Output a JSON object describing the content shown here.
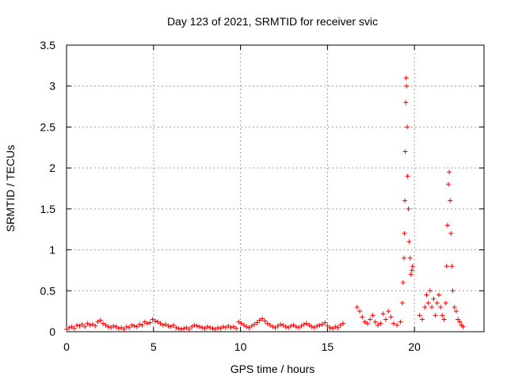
{
  "chart_data": {
    "type": "scatter",
    "title": "Day 123 of 2021, SRMTID for receiver svic",
    "xlabel": "GPS time / hours",
    "ylabel": "SRMTID / TECUs",
    "xlim": [
      0,
      24
    ],
    "ylim": [
      0,
      3.5
    ],
    "x_ticks": [
      0,
      5,
      10,
      15,
      20
    ],
    "x_tick_labels": [
      "0",
      "5",
      "10",
      "15",
      "20"
    ],
    "y_ticks": [
      0,
      0.5,
      1,
      1.5,
      2,
      2.5,
      3,
      3.5
    ],
    "y_tick_labels": [
      "0",
      "0.5",
      "1",
      "1.5",
      "2",
      "2.5",
      "3",
      "3.5"
    ],
    "grid": true,
    "marker": "+",
    "color": "#ff0000",
    "series": [
      {
        "name": "SRMTID",
        "x": [
          0.0,
          0.15,
          0.3,
          0.45,
          0.6,
          0.75,
          0.9,
          1.05,
          1.2,
          1.35,
          1.5,
          1.65,
          1.8,
          1.95,
          2.1,
          2.25,
          2.4,
          2.55,
          2.7,
          2.85,
          3.0,
          3.15,
          3.3,
          3.45,
          3.6,
          3.75,
          3.9,
          4.05,
          4.2,
          4.35,
          4.5,
          4.65,
          4.8,
          4.95,
          5.1,
          5.25,
          5.4,
          5.55,
          5.7,
          5.85,
          6.0,
          6.15,
          6.3,
          6.45,
          6.6,
          6.75,
          6.9,
          7.05,
          7.2,
          7.35,
          7.5,
          7.65,
          7.8,
          7.95,
          8.1,
          8.25,
          8.4,
          8.55,
          8.7,
          8.85,
          9.0,
          9.15,
          9.3,
          9.45,
          9.6,
          9.75,
          9.9,
          10.05,
          10.2,
          10.35,
          10.5,
          10.65,
          10.8,
          10.95,
          11.1,
          11.25,
          11.4,
          11.55,
          11.7,
          11.85,
          12.0,
          12.15,
          12.3,
          12.45,
          12.6,
          12.75,
          12.9,
          13.05,
          13.2,
          13.35,
          13.5,
          13.65,
          13.8,
          13.95,
          14.1,
          14.25,
          14.4,
          14.55,
          14.7,
          14.85,
          15.0,
          15.15,
          15.3,
          15.45,
          15.6,
          15.75,
          15.9,
          16.7,
          16.85,
          17.0,
          17.15,
          17.3,
          17.45,
          17.6,
          17.75,
          17.9,
          18.05,
          18.2,
          18.35,
          18.5,
          18.65,
          18.8,
          19.0,
          19.2,
          19.3,
          19.35,
          19.4,
          19.42,
          19.45,
          19.47,
          19.5,
          19.52,
          19.55,
          19.58,
          19.6,
          19.65,
          19.7,
          19.75,
          19.8,
          19.85,
          19.9,
          20.3,
          20.45,
          20.6,
          20.7,
          20.8,
          20.9,
          21.0,
          21.1,
          21.2,
          21.3,
          21.4,
          21.5,
          21.6,
          21.7,
          21.8,
          21.85,
          21.9,
          21.95,
          22.0,
          22.05,
          22.1,
          22.15,
          22.2,
          22.3,
          22.4,
          22.5,
          22.6,
          22.7,
          22.8
        ],
        "y": [
          0.03,
          0.05,
          0.06,
          0.04,
          0.08,
          0.07,
          0.09,
          0.06,
          0.1,
          0.08,
          0.09,
          0.07,
          0.12,
          0.14,
          0.1,
          0.08,
          0.06,
          0.05,
          0.07,
          0.06,
          0.04,
          0.05,
          0.03,
          0.06,
          0.05,
          0.08,
          0.07,
          0.06,
          0.09,
          0.08,
          0.12,
          0.1,
          0.11,
          0.15,
          0.13,
          0.12,
          0.1,
          0.08,
          0.09,
          0.07,
          0.06,
          0.08,
          0.05,
          0.04,
          0.03,
          0.04,
          0.05,
          0.03,
          0.06,
          0.08,
          0.07,
          0.06,
          0.05,
          0.04,
          0.06,
          0.05,
          0.04,
          0.03,
          0.05,
          0.04,
          0.06,
          0.05,
          0.07,
          0.05,
          0.06,
          0.04,
          0.12,
          0.1,
          0.08,
          0.06,
          0.05,
          0.07,
          0.09,
          0.11,
          0.14,
          0.16,
          0.13,
          0.1,
          0.08,
          0.06,
          0.05,
          0.07,
          0.09,
          0.08,
          0.06,
          0.05,
          0.07,
          0.08,
          0.06,
          0.05,
          0.07,
          0.09,
          0.1,
          0.08,
          0.06,
          0.05,
          0.07,
          0.08,
          0.09,
          0.11,
          0.07,
          0.05,
          0.04,
          0.06,
          0.05,
          0.08,
          0.1,
          0.3,
          0.25,
          0.18,
          0.12,
          0.1,
          0.15,
          0.2,
          0.12,
          0.08,
          0.1,
          0.22,
          0.15,
          0.25,
          0.18,
          0.1,
          0.08,
          0.12,
          0.35,
          0.6,
          0.9,
          1.2,
          1.6,
          2.2,
          2.8,
          3.1,
          3.0,
          2.5,
          1.9,
          1.5,
          1.1,
          0.9,
          0.7,
          0.75,
          0.8,
          0.2,
          0.15,
          0.3,
          0.45,
          0.35,
          0.5,
          0.3,
          0.4,
          0.2,
          0.35,
          0.45,
          0.3,
          0.2,
          0.15,
          0.35,
          0.8,
          1.3,
          1.8,
          1.95,
          1.6,
          1.2,
          0.8,
          0.5,
          0.3,
          0.25,
          0.15,
          0.12,
          0.08,
          0.06
        ]
      }
    ]
  }
}
